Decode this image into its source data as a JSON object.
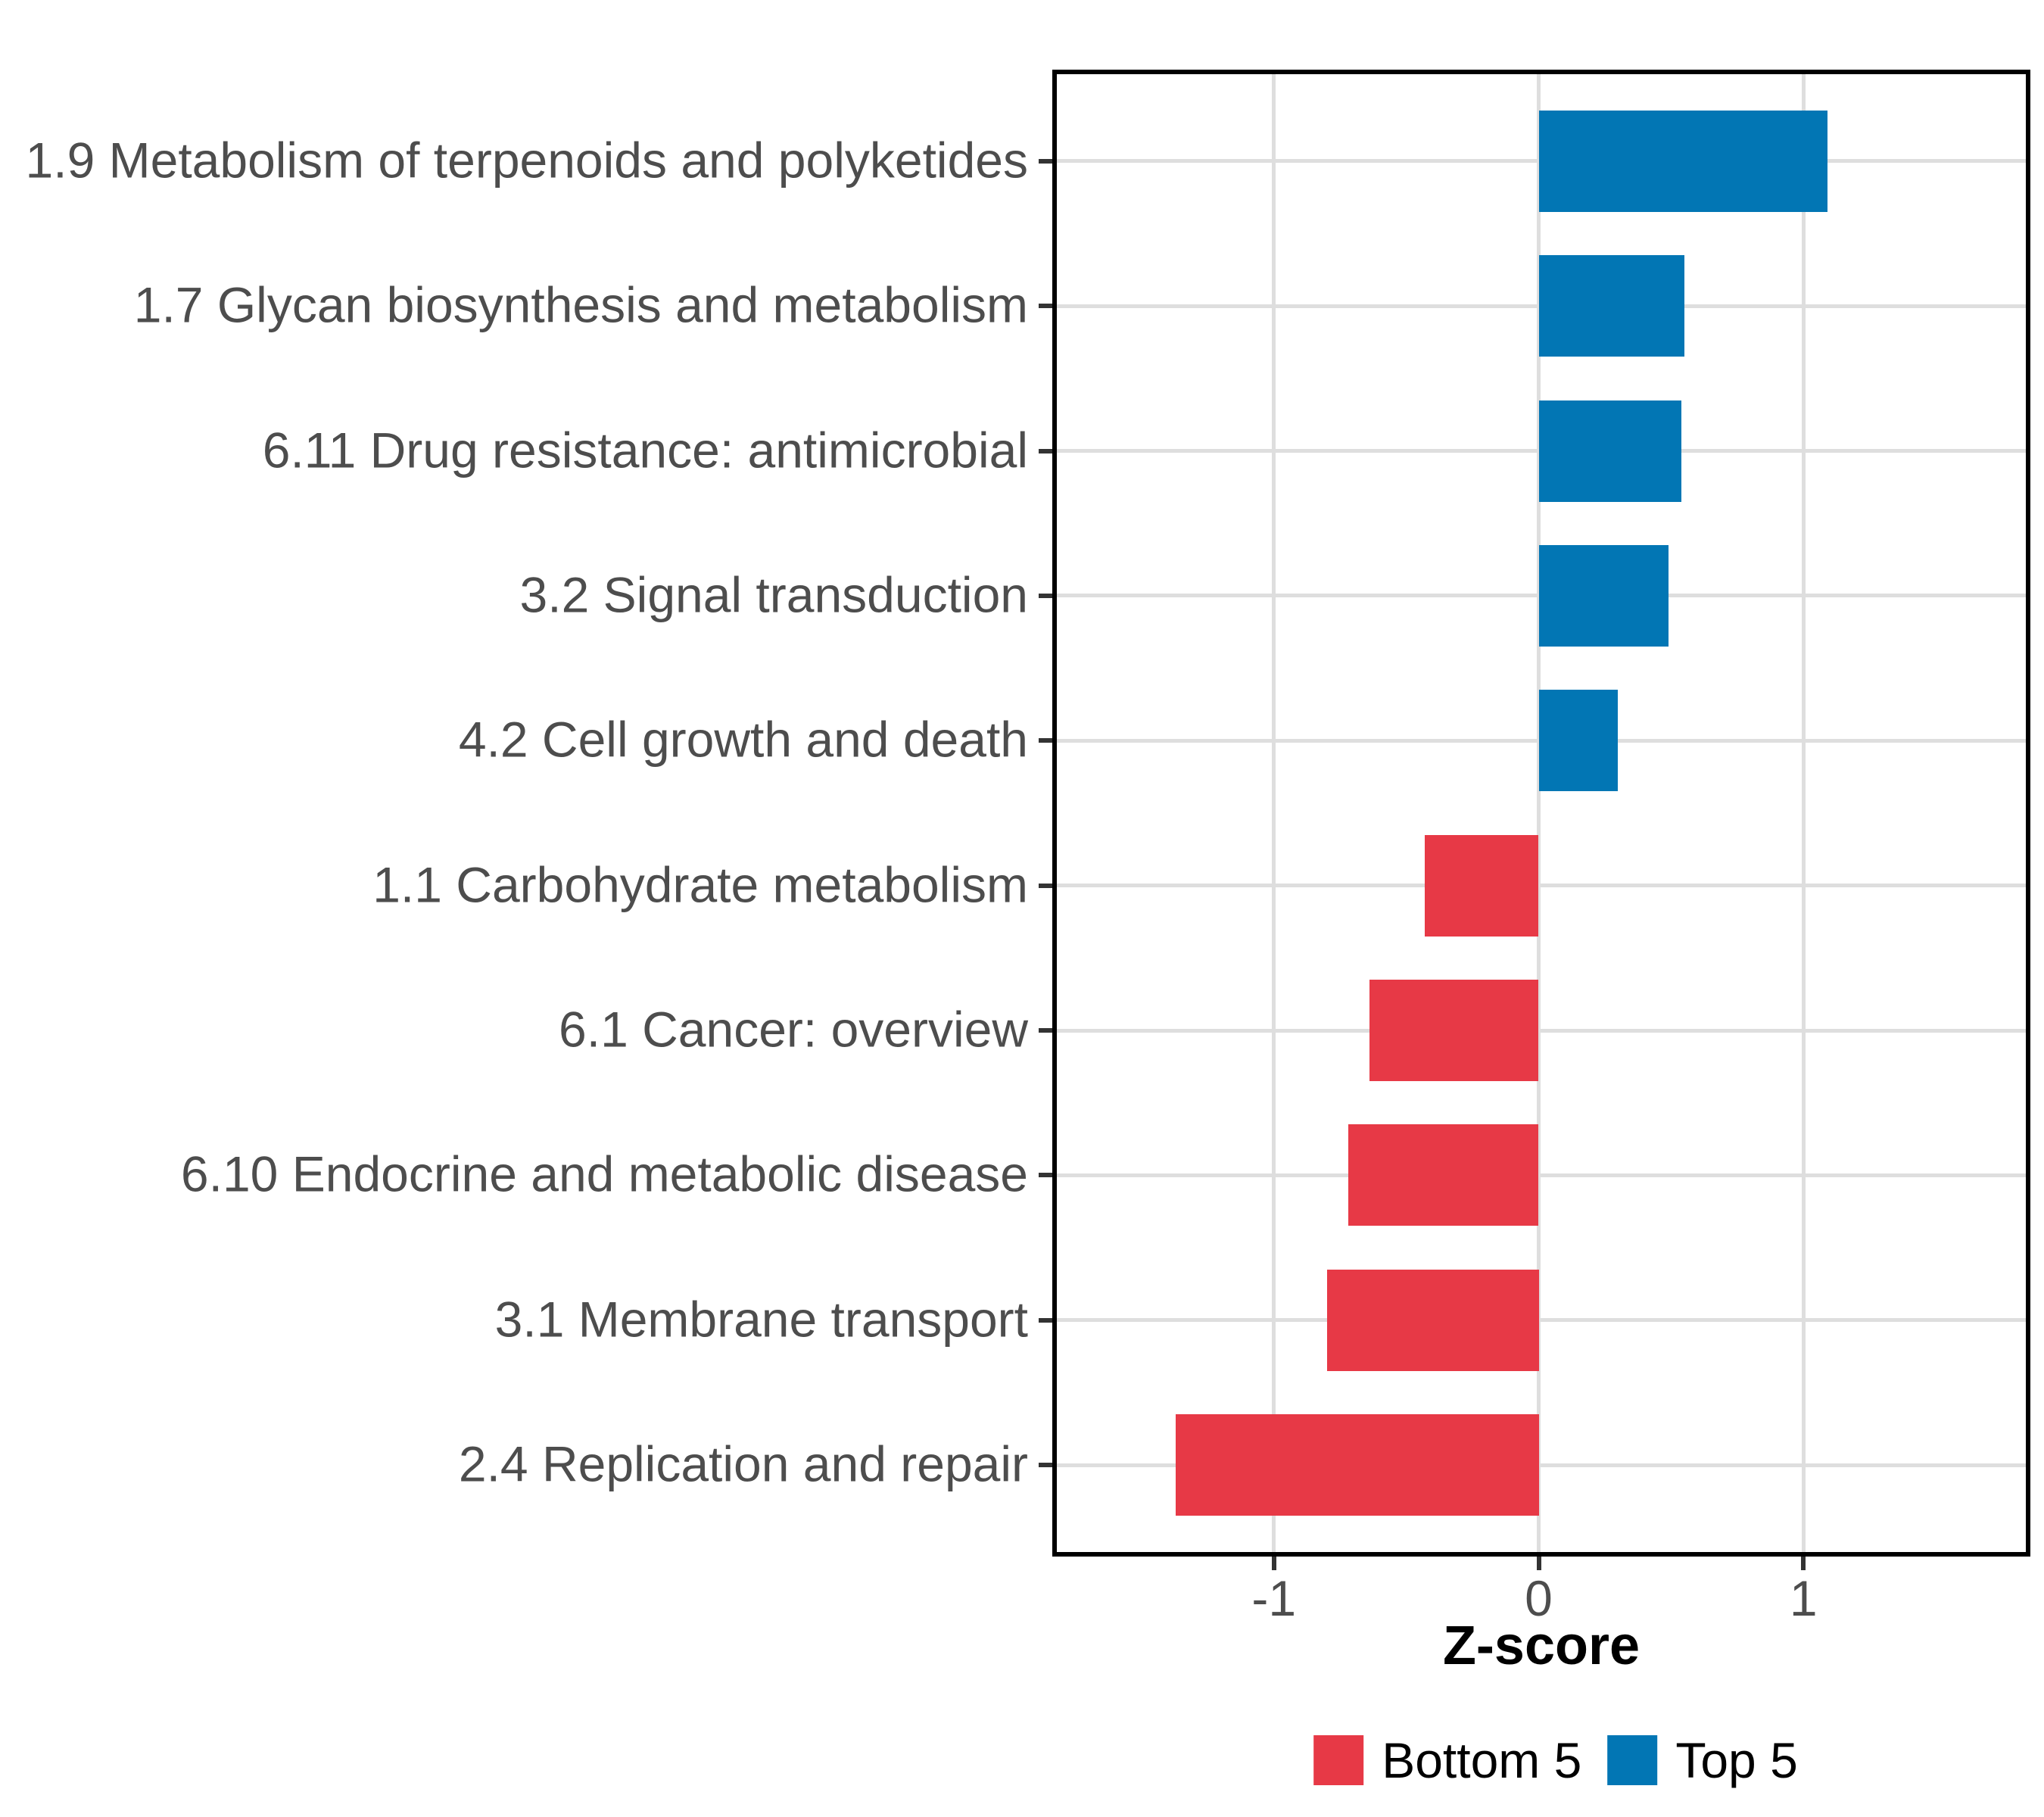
{
  "chart_data": {
    "type": "bar",
    "orientation": "horizontal",
    "title": "",
    "xlabel": "Z-score",
    "ylabel": "",
    "categories": [
      "1.9 Metabolism of terpenoids and polyketides",
      "1.7 Glycan biosynthesis and metabolism",
      "6.11 Drug resistance: antimicrobial",
      "3.2 Signal transduction",
      "4.2 Cell growth and death",
      "1.1 Carbohydrate metabolism",
      "6.1 Cancer: overview",
      "6.10 Endocrine and metabolic disease",
      "3.1 Membrane transport",
      "2.4 Replication and repair"
    ],
    "values": [
      1.09,
      0.55,
      0.54,
      0.49,
      0.3,
      -0.43,
      -0.64,
      -0.72,
      -0.8,
      -1.37
    ],
    "groups": [
      "Top 5",
      "Top 5",
      "Top 5",
      "Top 5",
      "Top 5",
      "Bottom 5",
      "Bottom 5",
      "Bottom 5",
      "Bottom 5",
      "Bottom 5"
    ],
    "colors": {
      "Bottom 5": "#E73946",
      "Top 5": "#0276B4"
    },
    "legend": [
      {
        "label": "Bottom 5",
        "color": "#E73946"
      },
      {
        "label": "Top 5",
        "color": "#0276B4"
      }
    ],
    "legend_position": "bottom",
    "xlim": [
      -1.82,
      1.84
    ],
    "x_ticks": [
      -1,
      0,
      1
    ],
    "x_tick_labels": [
      "-1",
      "0",
      "1"
    ],
    "grid": "major",
    "panel_border": true,
    "axis_text_color": "#4d4d4d",
    "gridline_color": "#dedede"
  }
}
